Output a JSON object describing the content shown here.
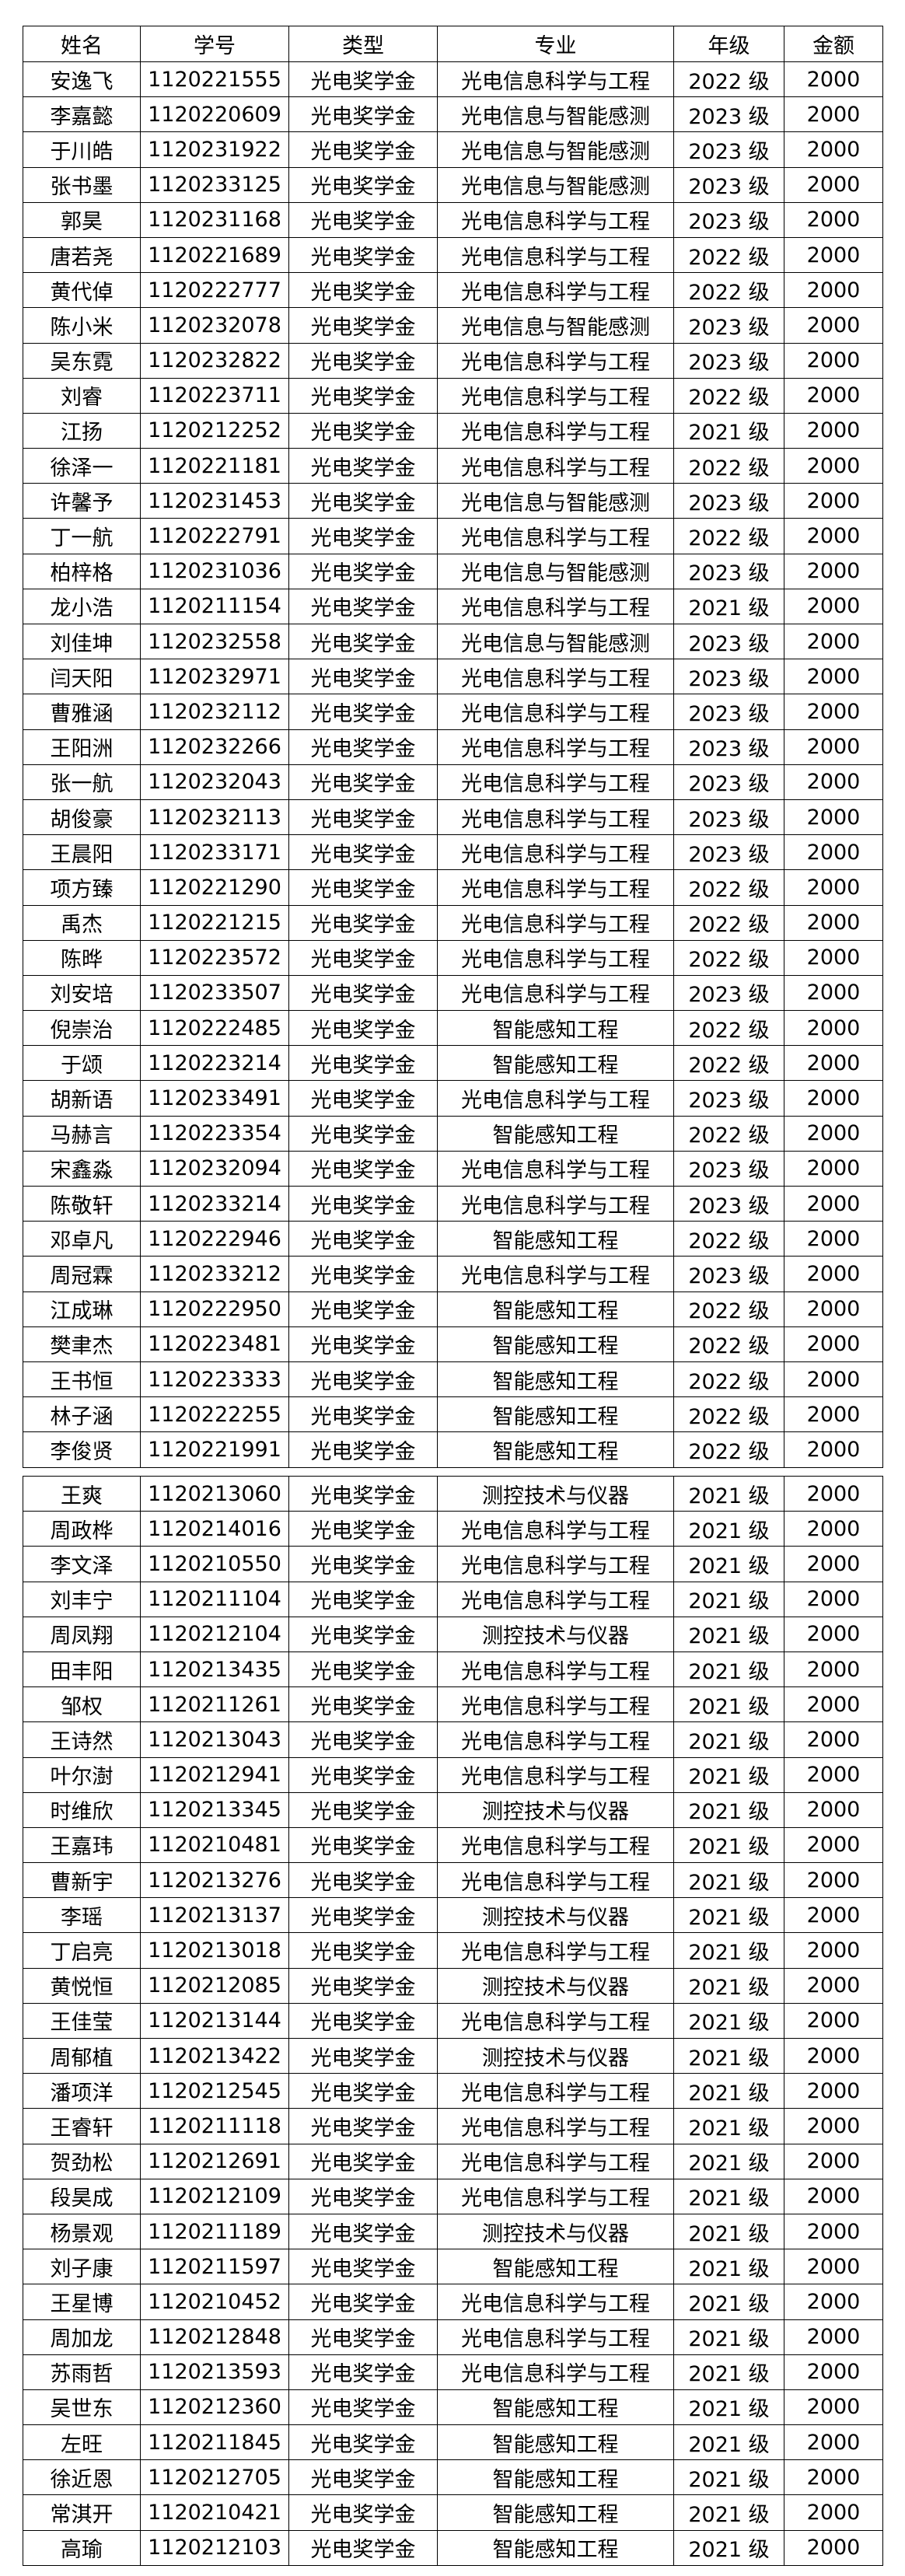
{
  "header": [
    "姓名",
    "学号",
    "类型",
    "专业",
    "年级",
    "金额"
  ],
  "tables": [
    {
      "rows": [
        [
          "安逸飞",
          "1120221555",
          "光电奖学金",
          "光电信息科学与工程",
          "2022 级",
          "2000"
        ],
        [
          "李嘉懿",
          "1120220609",
          "光电奖学金",
          "光电信息与智能感测",
          "2023 级",
          "2000"
        ],
        [
          "于川皓",
          "1120231922",
          "光电奖学金",
          "光电信息与智能感测",
          "2023 级",
          "2000"
        ],
        [
          "张书墨",
          "1120233125",
          "光电奖学金",
          "光电信息与智能感测",
          "2023 级",
          "2000"
        ],
        [
          "郭昊",
          "1120231168",
          "光电奖学金",
          "光电信息科学与工程",
          "2023 级",
          "2000"
        ],
        [
          "唐若尧",
          "1120221689",
          "光电奖学金",
          "光电信息科学与工程",
          "2022 级",
          "2000"
        ],
        [
          "黄代倬",
          "1120222777",
          "光电奖学金",
          "光电信息科学与工程",
          "2022 级",
          "2000"
        ],
        [
          "陈小米",
          "1120232078",
          "光电奖学金",
          "光电信息与智能感测",
          "2023 级",
          "2000"
        ],
        [
          "吴东霓",
          "1120232822",
          "光电奖学金",
          "光电信息科学与工程",
          "2023 级",
          "2000"
        ],
        [
          "刘睿",
          "1120223711",
          "光电奖学金",
          "光电信息科学与工程",
          "2022 级",
          "2000"
        ],
        [
          "江扬",
          "1120212252",
          "光电奖学金",
          "光电信息科学与工程",
          "2021 级",
          "2000"
        ],
        [
          "徐泽一",
          "1120221181",
          "光电奖学金",
          "光电信息科学与工程",
          "2022 级",
          "2000"
        ],
        [
          "许馨予",
          "1120231453",
          "光电奖学金",
          "光电信息与智能感测",
          "2023 级",
          "2000"
        ],
        [
          "丁一航",
          "1120222791",
          "光电奖学金",
          "光电信息科学与工程",
          "2022 级",
          "2000"
        ],
        [
          "柏梓格",
          "1120231036",
          "光电奖学金",
          "光电信息与智能感测",
          "2023 级",
          "2000"
        ],
        [
          "龙小浩",
          "1120211154",
          "光电奖学金",
          "光电信息科学与工程",
          "2021 级",
          "2000"
        ],
        [
          "刘佳坤",
          "1120232558",
          "光电奖学金",
          "光电信息与智能感测",
          "2023 级",
          "2000"
        ],
        [
          "闫天阳",
          "1120232971",
          "光电奖学金",
          "光电信息科学与工程",
          "2023 级",
          "2000"
        ],
        [
          "曹雅涵",
          "1120232112",
          "光电奖学金",
          "光电信息科学与工程",
          "2023 级",
          "2000"
        ],
        [
          "王阳洲",
          "1120232266",
          "光电奖学金",
          "光电信息科学与工程",
          "2023 级",
          "2000"
        ],
        [
          "张一航",
          "1120232043",
          "光电奖学金",
          "光电信息科学与工程",
          "2023 级",
          "2000"
        ],
        [
          "胡俊豪",
          "1120232113",
          "光电奖学金",
          "光电信息科学与工程",
          "2023 级",
          "2000"
        ],
        [
          "王晨阳",
          "1120233171",
          "光电奖学金",
          "光电信息科学与工程",
          "2023 级",
          "2000"
        ],
        [
          "项方臻",
          "1120221290",
          "光电奖学金",
          "光电信息科学与工程",
          "2022 级",
          "2000"
        ],
        [
          "禹杰",
          "1120221215",
          "光电奖学金",
          "光电信息科学与工程",
          "2022 级",
          "2000"
        ],
        [
          "陈晔",
          "1120223572",
          "光电奖学金",
          "光电信息科学与工程",
          "2022 级",
          "2000"
        ],
        [
          "刘安培",
          "1120233507",
          "光电奖学金",
          "光电信息科学与工程",
          "2023 级",
          "2000"
        ],
        [
          "倪崇治",
          "1120222485",
          "光电奖学金",
          "智能感知工程",
          "2022 级",
          "2000"
        ],
        [
          "于颂",
          "1120223214",
          "光电奖学金",
          "智能感知工程",
          "2022 级",
          "2000"
        ],
        [
          "胡新语",
          "1120233491",
          "光电奖学金",
          "光电信息科学与工程",
          "2023 级",
          "2000"
        ],
        [
          "马赫言",
          "1120223354",
          "光电奖学金",
          "智能感知工程",
          "2022 级",
          "2000"
        ],
        [
          "宋鑫淼",
          "1120232094",
          "光电奖学金",
          "光电信息科学与工程",
          "2023 级",
          "2000"
        ],
        [
          "陈敬轩",
          "1120233214",
          "光电奖学金",
          "光电信息科学与工程",
          "2023 级",
          "2000"
        ],
        [
          "邓卓凡",
          "1120222946",
          "光电奖学金",
          "智能感知工程",
          "2022 级",
          "2000"
        ],
        [
          "周冠霖",
          "1120233212",
          "光电奖学金",
          "光电信息科学与工程",
          "2023 级",
          "2000"
        ],
        [
          "江成琳",
          "1120222950",
          "光电奖学金",
          "智能感知工程",
          "2022 级",
          "2000"
        ],
        [
          "樊聿杰",
          "1120223481",
          "光电奖学金",
          "智能感知工程",
          "2022 级",
          "2000"
        ],
        [
          "王书恒",
          "1120223333",
          "光电奖学金",
          "智能感知工程",
          "2022 级",
          "2000"
        ],
        [
          "林子涵",
          "1120222255",
          "光电奖学金",
          "智能感知工程",
          "2022 级",
          "2000"
        ],
        [
          "李俊贤",
          "1120221991",
          "光电奖学金",
          "智能感知工程",
          "2022 级",
          "2000"
        ]
      ]
    },
    {
      "rows": [
        [
          "王爽",
          "1120213060",
          "光电奖学金",
          "测控技术与仪器",
          "2021 级",
          "2000"
        ],
        [
          "周政桦",
          "1120214016",
          "光电奖学金",
          "光电信息科学与工程",
          "2021 级",
          "2000"
        ],
        [
          "李文泽",
          "1120210550",
          "光电奖学金",
          "光电信息科学与工程",
          "2021 级",
          "2000"
        ],
        [
          "刘丰宁",
          "1120211104",
          "光电奖学金",
          "光电信息科学与工程",
          "2021 级",
          "2000"
        ],
        [
          "周凤翔",
          "1120212104",
          "光电奖学金",
          "测控技术与仪器",
          "2021 级",
          "2000"
        ],
        [
          "田丰阳",
          "1120213435",
          "光电奖学金",
          "光电信息科学与工程",
          "2021 级",
          "2000"
        ],
        [
          "邹权",
          "1120211261",
          "光电奖学金",
          "光电信息科学与工程",
          "2021 级",
          "2000"
        ],
        [
          "王诗然",
          "1120213043",
          "光电奖学金",
          "光电信息科学与工程",
          "2021 级",
          "2000"
        ],
        [
          "叶尔澍",
          "1120212941",
          "光电奖学金",
          "光电信息科学与工程",
          "2021 级",
          "2000"
        ],
        [
          "时维欣",
          "1120213345",
          "光电奖学金",
          "测控技术与仪器",
          "2021 级",
          "2000"
        ],
        [
          "王嘉玮",
          "1120210481",
          "光电奖学金",
          "光电信息科学与工程",
          "2021 级",
          "2000"
        ],
        [
          "曹新宇",
          "1120213276",
          "光电奖学金",
          "光电信息科学与工程",
          "2021 级",
          "2000"
        ],
        [
          "李瑶",
          "1120213137",
          "光电奖学金",
          "测控技术与仪器",
          "2021 级",
          "2000"
        ],
        [
          "丁启亮",
          "1120213018",
          "光电奖学金",
          "光电信息科学与工程",
          "2021 级",
          "2000"
        ],
        [
          "黄悦恒",
          "1120212085",
          "光电奖学金",
          "测控技术与仪器",
          "2021 级",
          "2000"
        ],
        [
          "王佳莹",
          "1120213144",
          "光电奖学金",
          "光电信息科学与工程",
          "2021 级",
          "2000"
        ],
        [
          "周郁植",
          "1120213422",
          "光电奖学金",
          "测控技术与仪器",
          "2021 级",
          "2000"
        ],
        [
          "潘项洋",
          "1120212545",
          "光电奖学金",
          "光电信息科学与工程",
          "2021 级",
          "2000"
        ],
        [
          "王睿轩",
          "1120211118",
          "光电奖学金",
          "光电信息科学与工程",
          "2021 级",
          "2000"
        ],
        [
          "贺劲松",
          "1120212691",
          "光电奖学金",
          "光电信息科学与工程",
          "2021 级",
          "2000"
        ],
        [
          "段昊成",
          "1120212109",
          "光电奖学金",
          "光电信息科学与工程",
          "2021 级",
          "2000"
        ],
        [
          "杨景观",
          "1120211189",
          "光电奖学金",
          "测控技术与仪器",
          "2021 级",
          "2000"
        ],
        [
          "刘子康",
          "1120211597",
          "光电奖学金",
          "智能感知工程",
          "2021 级",
          "2000"
        ],
        [
          "王星博",
          "1120210452",
          "光电奖学金",
          "光电信息科学与工程",
          "2021 级",
          "2000"
        ],
        [
          "周加龙",
          "1120212848",
          "光电奖学金",
          "光电信息科学与工程",
          "2021 级",
          "2000"
        ],
        [
          "苏雨哲",
          "1120213593",
          "光电奖学金",
          "光电信息科学与工程",
          "2021 级",
          "2000"
        ],
        [
          "吴世东",
          "1120212360",
          "光电奖学金",
          "智能感知工程",
          "2021 级",
          "2000"
        ],
        [
          "左旺",
          "1120211845",
          "光电奖学金",
          "智能感知工程",
          "2021 级",
          "2000"
        ],
        [
          "徐近恩",
          "1120212705",
          "光电奖学金",
          "智能感知工程",
          "2021 级",
          "2000"
        ],
        [
          "常淇开",
          "1120210421",
          "光电奖学金",
          "智能感知工程",
          "2021 级",
          "2000"
        ],
        [
          "高瑜",
          "1120212103",
          "光电奖学金",
          "智能感知工程",
          "2021 级",
          "2000"
        ]
      ]
    }
  ]
}
